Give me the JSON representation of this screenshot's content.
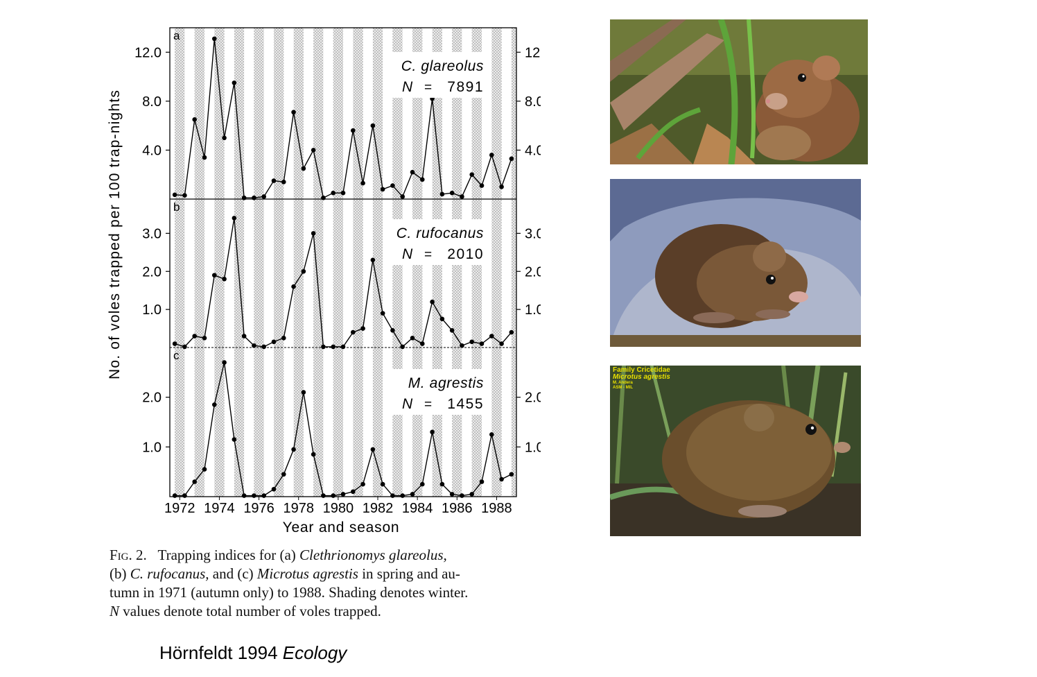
{
  "chart_data": {
    "type": "line",
    "xlabel": "Year and season",
    "ylabel": "No. of voles trapped per 100 trap-nights",
    "x_ticks": [
      "1972",
      "1974",
      "1976",
      "1978",
      "1980",
      "1982",
      "1984",
      "1986",
      "1988"
    ],
    "x": [
      1971.75,
      1972.25,
      1972.75,
      1973.25,
      1973.75,
      1974.25,
      1974.75,
      1975.25,
      1975.75,
      1976.25,
      1976.75,
      1977.25,
      1977.75,
      1978.25,
      1978.75,
      1979.25,
      1979.75,
      1980.25,
      1980.75,
      1981.25,
      1981.75,
      1982.25,
      1982.75,
      1983.25,
      1983.75,
      1984.25,
      1984.75,
      1985.25,
      1985.75,
      1986.25,
      1986.75,
      1987.25,
      1987.75,
      1988.25,
      1988.75
    ],
    "shading": "winter",
    "panels": [
      {
        "letter": "a",
        "species": "C. glareolus",
        "n_label": "N",
        "n_eq": "=",
        "n_value": "7891",
        "ylim": [
          0,
          14
        ],
        "ticks": [
          "4.0",
          "8.0",
          "12.0"
        ],
        "tick_values": [
          4,
          8,
          12
        ],
        "values": [
          0.35,
          0.3,
          6.5,
          3.4,
          13.1,
          5.0,
          9.5,
          0.1,
          0.1,
          0.2,
          1.5,
          1.4,
          7.1,
          2.5,
          4.0,
          0.1,
          0.5,
          0.5,
          5.6,
          1.3,
          6.0,
          0.8,
          1.1,
          0.2,
          2.2,
          1.6,
          8.2,
          0.4,
          0.5,
          0.2,
          2.0,
          1.1,
          3.6,
          1.0,
          3.3
        ]
      },
      {
        "letter": "b",
        "species": "C. rufocanus",
        "n_label": "N",
        "n_eq": "=",
        "n_value": "2010",
        "ylim": [
          0,
          3.9
        ],
        "ticks": [
          "1.0",
          "2.0",
          "3.0"
        ],
        "tick_values": [
          1,
          2,
          3
        ],
        "values": [
          0.1,
          0.02,
          0.3,
          0.25,
          1.9,
          1.8,
          3.4,
          0.3,
          0.05,
          0.02,
          0.15,
          0.25,
          1.6,
          2.0,
          3.0,
          0.02,
          0.02,
          0.02,
          0.4,
          0.5,
          2.3,
          0.9,
          0.45,
          0.02,
          0.25,
          0.1,
          1.2,
          0.75,
          0.45,
          0.05,
          0.15,
          0.1,
          0.3,
          0.1,
          0.4
        ]
      },
      {
        "letter": "c",
        "species": "M. agrestis",
        "n_label": "N",
        "n_eq": "=",
        "n_value": "1455",
        "ylim": [
          0,
          3.0
        ],
        "ticks": [
          "1.0",
          "2.0"
        ],
        "tick_values": [
          1,
          2
        ],
        "values": [
          0.02,
          0.02,
          0.3,
          0.55,
          1.85,
          2.7,
          1.15,
          0.02,
          0.02,
          0.02,
          0.15,
          0.45,
          0.95,
          2.1,
          0.85,
          0.02,
          0.02,
          0.05,
          0.1,
          0.25,
          0.95,
          0.25,
          0.02,
          0.02,
          0.05,
          0.25,
          1.3,
          0.25,
          0.05,
          0.02,
          0.05,
          0.3,
          1.25,
          0.35,
          0.45
        ]
      }
    ]
  },
  "caption": {
    "fig_label": "Fig. 2.",
    "text_1": "Trapping indices for (a) ",
    "species_a": "Clethrionomys glareolus,",
    "text_2": "(b) ",
    "species_b": "C. rufocanus,",
    "text_3": " and (c) ",
    "species_c": "Microtus agrestis",
    "text_4": " in spring and au-",
    "text_5": "tumn in 1971 (autumn only) to 1988. Shading denotes winter.",
    "text_6_italic": "N",
    "text_6": " values denote total number of voles trapped."
  },
  "citation": {
    "author_year": "Hörnfeldt 1994 ",
    "journal": "Ecology"
  },
  "photos": [
    {
      "subject": "bank-vole-photo"
    },
    {
      "subject": "grey-sided-vole-photo"
    },
    {
      "subject": "field-vole-photo",
      "overlay_lines": [
        "Family Cricetidae",
        "Microtus agrestis",
        "M. Andera",
        "ASM - MIL"
      ]
    }
  ]
}
